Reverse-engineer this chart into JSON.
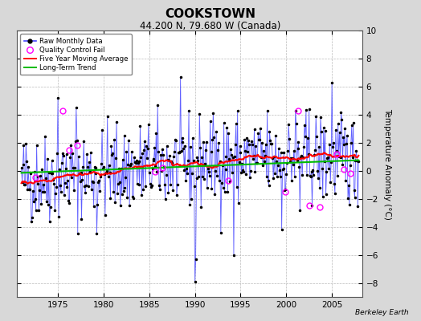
{
  "title": "COOKSTOWN",
  "subtitle": "44.200 N, 79.680 W (Canada)",
  "ylabel": "Temperature Anomaly (°C)",
  "credit": "Berkeley Earth",
  "ylim": [
    -9,
    10
  ],
  "xlim": [
    1970.5,
    2008.3
  ],
  "yticks": [
    -8,
    -6,
    -4,
    -2,
    0,
    2,
    4,
    6,
    8,
    10
  ],
  "xticks": [
    1975,
    1980,
    1985,
    1990,
    1995,
    2000,
    2005
  ],
  "bg_color": "#d8d8d8",
  "plot_bg_color": "#ffffff",
  "raw_color": "#4444ff",
  "raw_dot_color": "#000000",
  "ma_color": "#ff0000",
  "trend_color": "#00bb00",
  "qc_color": "#ff00ff",
  "start_year": 1971,
  "seed": 42
}
